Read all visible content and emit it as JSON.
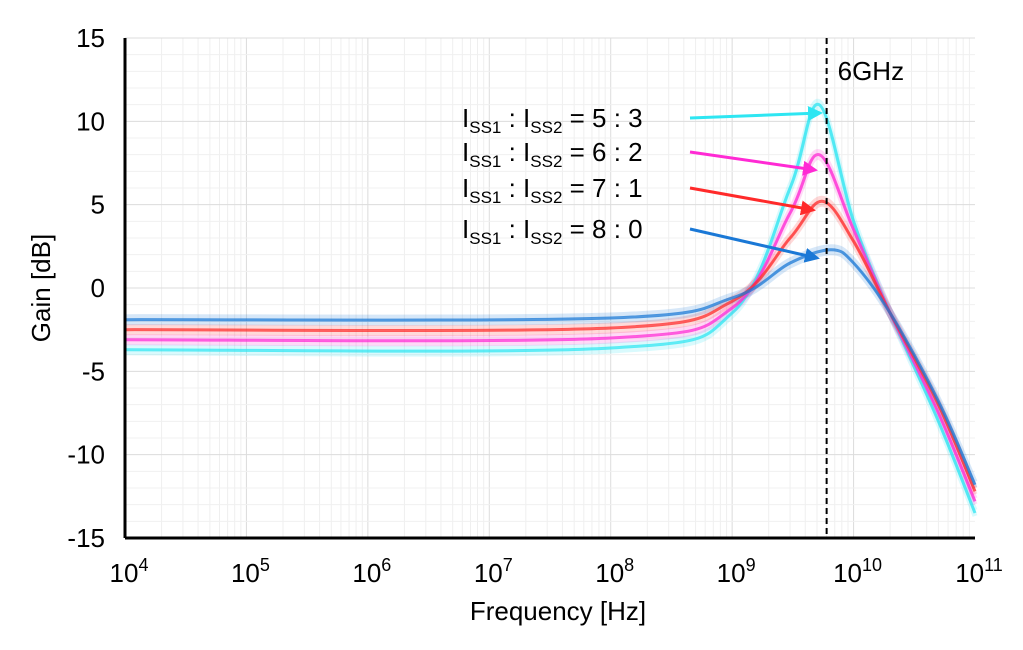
{
  "chart_data": {
    "type": "line",
    "xlabel": "Frequency [Hz]",
    "ylabel": "Gain [dB]",
    "x_scale": "log",
    "xlim": [
      10000,
      100000000000
    ],
    "ylim": [
      -15,
      15
    ],
    "grid": true,
    "x_ticks": [
      {
        "base": "10",
        "exp": "4",
        "value": 10000
      },
      {
        "base": "10",
        "exp": "5",
        "value": 100000
      },
      {
        "base": "10",
        "exp": "6",
        "value": 1000000
      },
      {
        "base": "10",
        "exp": "7",
        "value": 10000000
      },
      {
        "base": "10",
        "exp": "8",
        "value": 100000000
      },
      {
        "base": "10",
        "exp": "9",
        "value": 1000000000
      },
      {
        "base": "10",
        "exp": "10",
        "value": 10000000000
      },
      {
        "base": "10",
        "exp": "11",
        "value": 100000000000
      }
    ],
    "y_ticks": [
      {
        "label": "15",
        "value": 15
      },
      {
        "label": "10",
        "value": 10
      },
      {
        "label": "5",
        "value": 5
      },
      {
        "label": "0",
        "value": 0
      },
      {
        "label": "-5",
        "value": -5
      },
      {
        "label": "-10",
        "value": -10
      },
      {
        "label": "-15",
        "value": -15
      }
    ],
    "marker": {
      "x": 6000000000,
      "label": "6GHz"
    },
    "series": [
      {
        "label": {
          "i1": "I",
          "s1": "SS1",
          "sep": " : ",
          "i2": "I",
          "s2": "SS2",
          "ratio": " = 5 : 3"
        },
        "color": "#2ee6f2",
        "points": [
          [
            10000,
            -3.7
          ],
          [
            100000000,
            -3.6
          ],
          [
            1000000000,
            -1.5
          ],
          [
            3000000000,
            6
          ],
          [
            5200000000,
            11
          ],
          [
            10000000000,
            4
          ],
          [
            20000000000,
            -1.5
          ],
          [
            50000000000,
            -8
          ],
          [
            100000000000,
            -13.5
          ]
        ]
      },
      {
        "label": {
          "i1": "I",
          "s1": "SS1",
          "sep": " : ",
          "i2": "I",
          "s2": "SS2",
          "ratio": " = 6 : 2"
        },
        "color": "#ff2ad4",
        "points": [
          [
            10000,
            -3.1
          ],
          [
            100000000,
            -3.0
          ],
          [
            1000000000,
            -1.2
          ],
          [
            3000000000,
            4.5
          ],
          [
            5200000000,
            8
          ],
          [
            10000000000,
            3.5
          ],
          [
            20000000000,
            -1.5
          ],
          [
            50000000000,
            -7.5
          ],
          [
            100000000000,
            -12.8
          ]
        ]
      },
      {
        "label": {
          "i1": "I",
          "s1": "SS1",
          "sep": " : ",
          "i2": "I",
          "s2": "SS2",
          "ratio": " = 7 : 1"
        },
        "color": "#ff2a2a",
        "points": [
          [
            10000,
            -2.5
          ],
          [
            100000000,
            -2.4
          ],
          [
            1000000000,
            -0.8
          ],
          [
            3000000000,
            3
          ],
          [
            5500000000,
            5.2
          ],
          [
            10000000000,
            2.8
          ],
          [
            20000000000,
            -1.5
          ],
          [
            50000000000,
            -7
          ],
          [
            100000000000,
            -12.2
          ]
        ]
      },
      {
        "label": {
          "i1": "I",
          "s1": "SS1",
          "sep": " : ",
          "i2": "I",
          "s2": "SS2",
          "ratio": " = 8 : 0"
        },
        "color": "#1a78d6",
        "points": [
          [
            10000,
            -1.9
          ],
          [
            100000000,
            -1.8
          ],
          [
            1000000000,
            -0.6
          ],
          [
            3000000000,
            1.5
          ],
          [
            6500000000,
            2.3
          ],
          [
            10000000000,
            1.5
          ],
          [
            20000000000,
            -1.5
          ],
          [
            50000000000,
            -6.8
          ],
          [
            100000000000,
            -11.8
          ]
        ]
      }
    ]
  }
}
